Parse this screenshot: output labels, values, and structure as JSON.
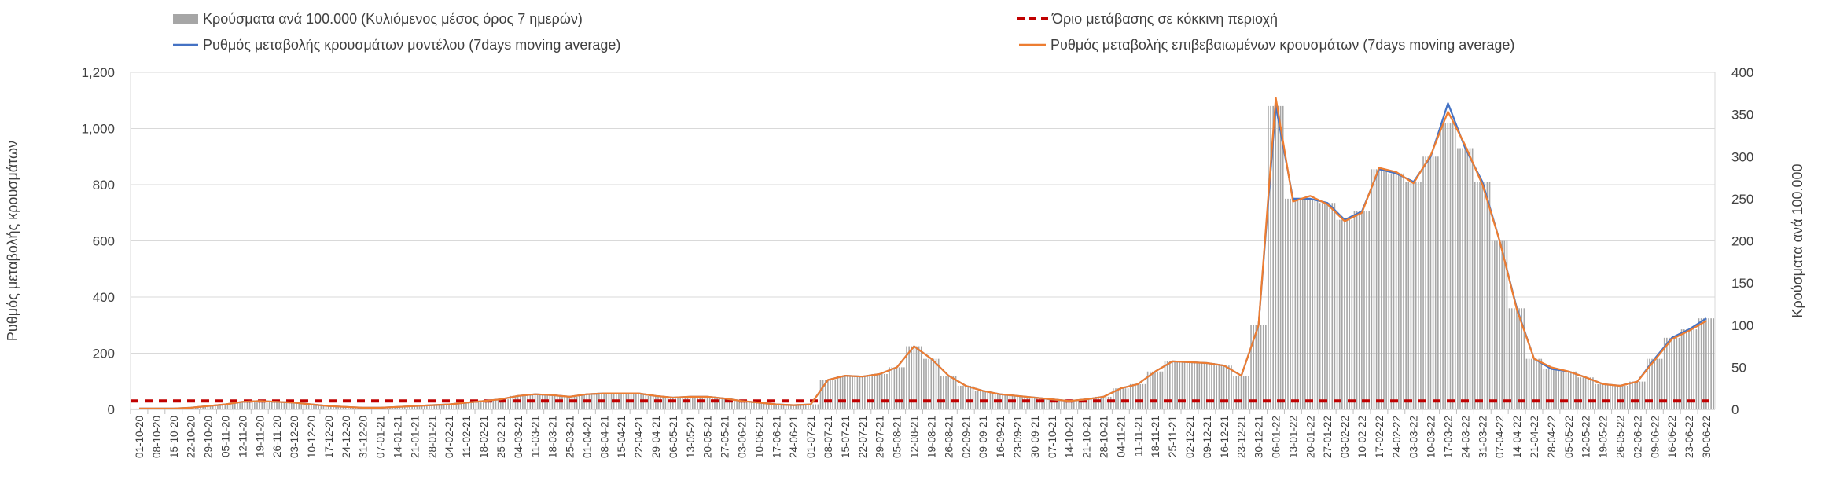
{
  "chart_data": {
    "type": "bar+line",
    "legend": {
      "bars": "Κρούσματα ανά 100.000 (Κυλιόμενος μέσος όρος 7 ημερών)",
      "threshold": "Όριο μετάβασης σε κόκκινη περιοχή",
      "model": "Ρυθμός μεταβολής κρουσμάτων μοντέλου (7days moving average)",
      "confirmed": "Ρυθμός μεταβολής επιβεβαιωμένων κρουσμάτων (7days moving average)"
    },
    "ylabel_left": "Ρυθμός μεταβολής κρουσμάτων",
    "ylabel_right": "Κρούσματα ανά 100.000",
    "y_left": {
      "min": 0,
      "max": 1200,
      "ticks": [
        "0",
        "200",
        "400",
        "600",
        "800",
        "1,000",
        "1,200"
      ]
    },
    "y_right": {
      "min": 0,
      "max": 400,
      "ticks": [
        "0",
        "50",
        "100",
        "150",
        "200",
        "250",
        "300",
        "350",
        "400"
      ]
    },
    "threshold_value": 30,
    "x_dates": [
      "01-10-20",
      "08-10-20",
      "15-10-20",
      "22-10-20",
      "29-10-20",
      "05-11-20",
      "12-11-20",
      "19-11-20",
      "26-11-20",
      "03-12-20",
      "10-12-20",
      "17-12-20",
      "24-12-20",
      "31-12-20",
      "07-01-21",
      "14-01-21",
      "21-01-21",
      "28-01-21",
      "04-02-21",
      "11-02-21",
      "18-02-21",
      "25-02-21",
      "04-03-21",
      "11-03-21",
      "18-03-21",
      "25-03-21",
      "01-04-21",
      "08-04-21",
      "15-04-21",
      "22-04-21",
      "29-04-21",
      "06-05-21",
      "13-05-21",
      "20-05-21",
      "27-05-21",
      "03-06-21",
      "10-06-21",
      "17-06-21",
      "24-06-21",
      "01-07-21",
      "08-07-21",
      "15-07-21",
      "22-07-21",
      "29-07-21",
      "05-08-21",
      "12-08-21",
      "19-08-21",
      "26-08-21",
      "02-09-21",
      "09-09-21",
      "16-09-21",
      "23-09-21",
      "30-09-21",
      "07-10-21",
      "14-10-21",
      "21-10-21",
      "28-10-21",
      "04-11-21",
      "11-11-21",
      "18-11-21",
      "25-11-21",
      "02-12-21",
      "09-12-21",
      "16-12-21",
      "23-12-21",
      "30-12-21",
      "06-01-22",
      "13-01-22",
      "20-01-22",
      "27-01-22",
      "03-02-22",
      "10-02-22",
      "17-02-22",
      "24-02-22",
      "03-03-22",
      "10-03-22",
      "17-03-22",
      "24-03-22",
      "31-03-22",
      "07-04-22",
      "14-04-22",
      "21-04-22",
      "28-04-22",
      "05-05-22",
      "12-05-22",
      "19-05-22",
      "26-05-22",
      "02-06-22",
      "09-06-22",
      "16-06-22",
      "23-06-22",
      "30-06-22"
    ],
    "cases_per_100k_weekly": [
      1,
      1,
      1,
      2,
      4,
      6,
      9,
      10,
      9,
      8,
      6,
      4,
      3,
      2,
      2,
      3,
      4,
      5,
      6,
      8,
      10,
      12,
      16,
      18,
      17,
      15,
      18,
      19,
      19,
      19,
      16,
      14,
      15,
      15,
      13,
      10,
      8,
      6,
      5,
      6,
      35,
      40,
      39,
      42,
      50,
      75,
      60,
      40,
      28,
      22,
      18,
      16,
      14,
      12,
      10,
      12,
      15,
      25,
      30,
      45,
      57,
      56,
      55,
      52,
      40,
      100,
      360,
      250,
      250,
      245,
      225,
      235,
      285,
      280,
      270,
      300,
      340,
      310,
      270,
      200,
      120,
      60,
      48,
      45,
      38,
      30,
      28,
      33,
      60,
      85,
      95,
      108
    ],
    "model_rate_weekly": [
      3,
      3,
      3,
      6,
      12,
      18,
      27,
      30,
      27,
      24,
      18,
      12,
      9,
      6,
      6,
      9,
      12,
      15,
      18,
      24,
      30,
      36,
      48,
      54,
      51,
      45,
      54,
      57,
      57,
      57,
      48,
      42,
      45,
      45,
      39,
      30,
      24,
      18,
      15,
      18,
      105,
      120,
      117,
      126,
      150,
      225,
      180,
      120,
      84,
      66,
      54,
      48,
      42,
      36,
      30,
      36,
      45,
      75,
      90,
      135,
      171,
      168,
      165,
      156,
      120,
      300,
      1080,
      750,
      750,
      735,
      675,
      705,
      855,
      840,
      810,
      900,
      1090,
      930,
      810,
      600,
      360,
      180,
      144,
      135,
      114,
      90,
      84,
      99,
      180,
      255,
      285,
      324
    ],
    "confirmed_rate_weekly": [
      3,
      3,
      3,
      6,
      12,
      18,
      27,
      30,
      27,
      24,
      18,
      12,
      9,
      6,
      6,
      9,
      12,
      15,
      18,
      24,
      30,
      36,
      48,
      54,
      51,
      45,
      54,
      57,
      57,
      57,
      48,
      42,
      45,
      45,
      39,
      30,
      24,
      18,
      15,
      18,
      105,
      120,
      117,
      126,
      150,
      225,
      180,
      120,
      84,
      66,
      54,
      48,
      42,
      36,
      30,
      36,
      45,
      75,
      90,
      135,
      171,
      168,
      165,
      156,
      120,
      300,
      1110,
      740,
      760,
      730,
      670,
      700,
      860,
      845,
      805,
      905,
      1060,
      940,
      800,
      600,
      355,
      180,
      150,
      135,
      114,
      90,
      84,
      99,
      175,
      250,
      280,
      315
    ]
  }
}
